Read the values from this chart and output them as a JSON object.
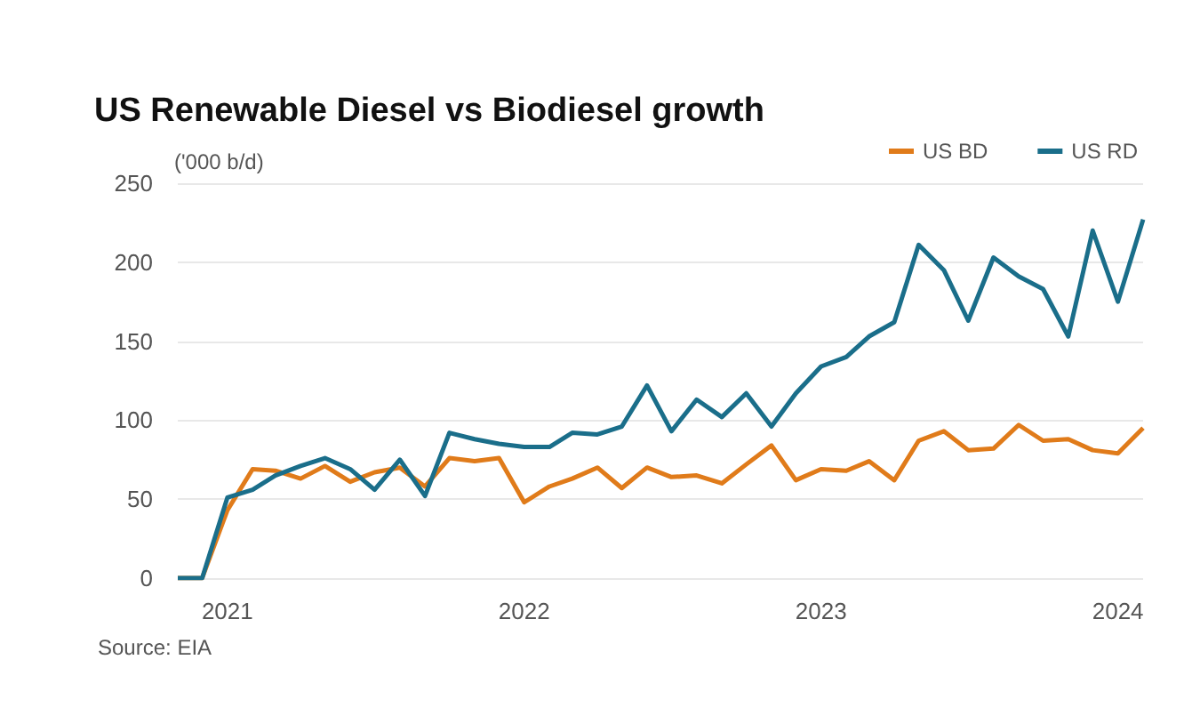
{
  "chart_data": {
    "type": "line",
    "title": "US Renewable Diesel vs Biodiesel growth",
    "ylabel": "('000 b/d)",
    "x": [
      "2020-11",
      "2020-12",
      "2021-01",
      "2021-02",
      "2021-03",
      "2021-04",
      "2021-05",
      "2021-06",
      "2021-07",
      "2021-08",
      "2021-09",
      "2021-10",
      "2021-11",
      "2021-12",
      "2022-01",
      "2022-02",
      "2022-03",
      "2022-04",
      "2022-05",
      "2022-06",
      "2022-07",
      "2022-08",
      "2022-09",
      "2022-10",
      "2022-11",
      "2022-12",
      "2023-01",
      "2023-02",
      "2023-03",
      "2023-04",
      "2023-05",
      "2023-06",
      "2023-07",
      "2023-08",
      "2023-09",
      "2023-10",
      "2023-11",
      "2023-12",
      "2024-01",
      "2024-02"
    ],
    "series": [
      {
        "name": "US BD",
        "color": "#e07b1a",
        "values": [
          0,
          0,
          43,
          69,
          68,
          63,
          71,
          61,
          67,
          70,
          58,
          76,
          74,
          76,
          48,
          58,
          63,
          70,
          57,
          70,
          64,
          65,
          60,
          72,
          84,
          62,
          69,
          68,
          74,
          62,
          87,
          93,
          81,
          82,
          97,
          87,
          88,
          81,
          79,
          95
        ]
      },
      {
        "name": "US RD",
        "color": "#1a6e8a",
        "values": [
          0,
          0,
          51,
          56,
          65,
          71,
          76,
          69,
          56,
          75,
          52,
          92,
          88,
          85,
          83,
          83,
          92,
          91,
          96,
          122,
          93,
          113,
          102,
          117,
          96,
          117,
          134,
          140,
          153,
          162,
          211,
          195,
          163,
          203,
          191,
          183,
          153,
          220,
          175,
          227
        ]
      }
    ],
    "xlim": [
      "2020-11",
      "2024-02"
    ],
    "xticks": [
      {
        "value": "2021-01",
        "label": "2021"
      },
      {
        "value": "2022-01",
        "label": "2022"
      },
      {
        "value": "2023-01",
        "label": "2023"
      },
      {
        "value": "2024-01",
        "label": "2024"
      }
    ],
    "ylim": [
      0,
      250
    ],
    "yticks": [
      0,
      50,
      100,
      150,
      200,
      250
    ],
    "grid": "y",
    "legend": "top right",
    "marker": "none",
    "line_style": "solid",
    "annotations": [
      "Source: EIA"
    ]
  }
}
